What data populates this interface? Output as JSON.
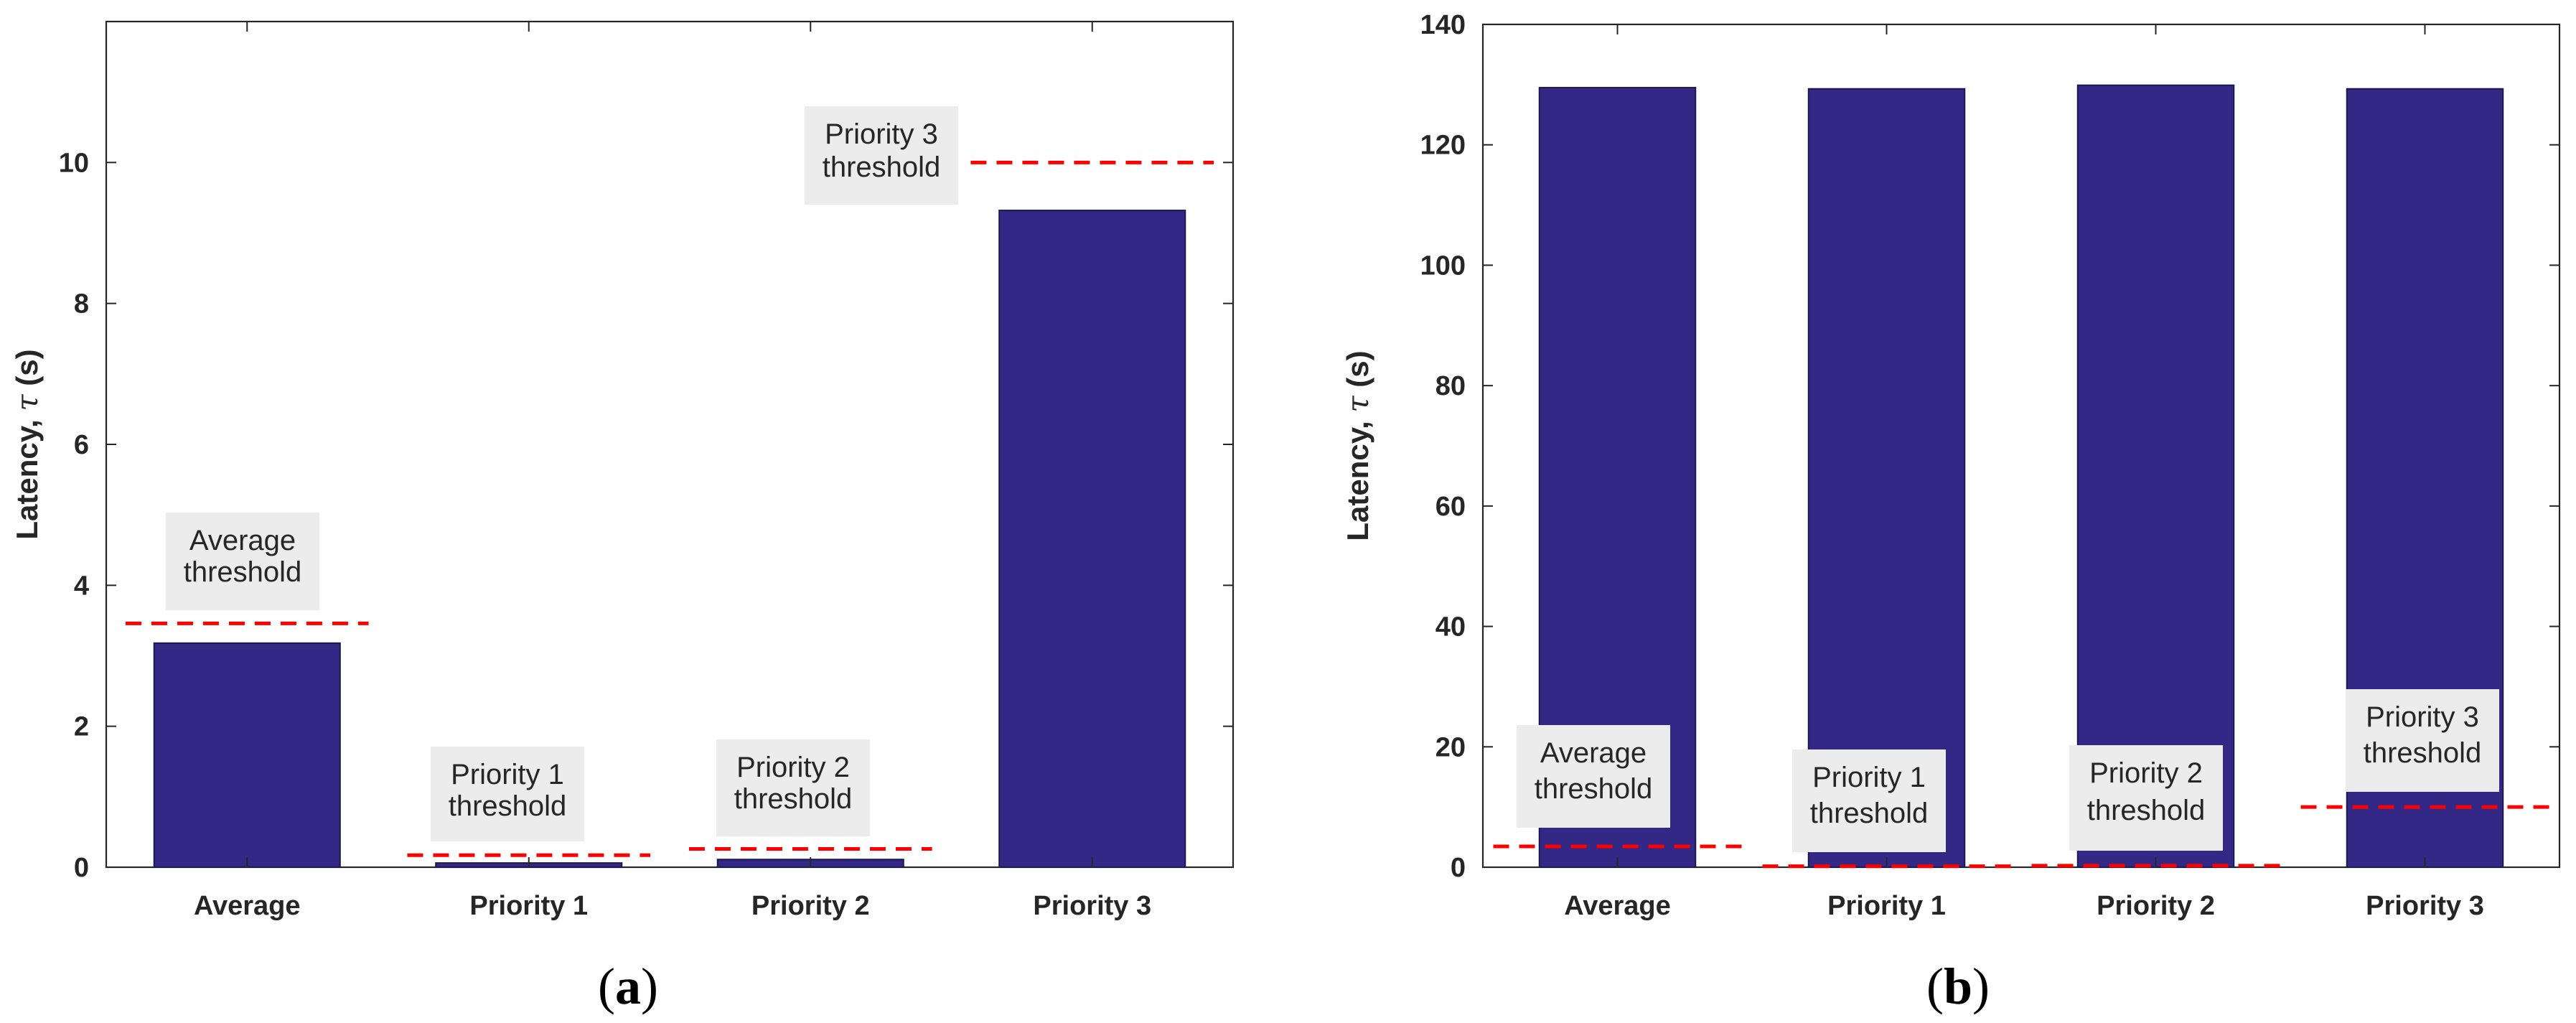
{
  "colors": {
    "bar": "#332885",
    "bar_edge": "#1d174f",
    "threshold": "#ff0000",
    "annotation_bg": "#ececec",
    "axis": "#262626"
  },
  "chart_data": [
    {
      "type": "bar",
      "panel_label": "a",
      "categories": [
        "Average",
        "Priority 1",
        "Priority 2",
        "Priority 3"
      ],
      "values": [
        3.18,
        0.06,
        0.11,
        9.32
      ],
      "thresholds": [
        3.46,
        0.17,
        0.26,
        10.0
      ],
      "ylabel_main": "Latency, ",
      "ylabel_symbol": "τ",
      "ylabel_unit": " (s)",
      "ylim": [
        0,
        12
      ],
      "yticks": [
        "0",
        "2",
        "4",
        "6",
        "8",
        "10"
      ],
      "annotations": [
        {
          "lines": [
            "Average",
            "threshold"
          ]
        },
        {
          "lines": [
            "Priority 1",
            "threshold"
          ]
        },
        {
          "lines": [
            "Priority 2",
            "threshold"
          ]
        },
        {
          "lines": [
            "Priority 3",
            "threshold"
          ]
        }
      ]
    },
    {
      "type": "bar",
      "panel_label": "b",
      "categories": [
        "Average",
        "Priority 1",
        "Priority 2",
        "Priority 3"
      ],
      "values": [
        129.5,
        129.3,
        129.9,
        129.3
      ],
      "thresholds": [
        3.46,
        0.17,
        0.26,
        10.0
      ],
      "ylabel_main": "Latency, ",
      "ylabel_symbol": "τ",
      "ylabel_unit": " (s)",
      "ylim": [
        0,
        140
      ],
      "yticks": [
        "0",
        "20",
        "40",
        "60",
        "80",
        "100",
        "120",
        "140"
      ],
      "annotations": [
        {
          "lines": [
            "Average",
            "threshold"
          ]
        },
        {
          "lines": [
            "Priority 1",
            "threshold"
          ]
        },
        {
          "lines": [
            "Priority 2",
            "threshold"
          ]
        },
        {
          "lines": [
            "Priority 3",
            "threshold"
          ]
        }
      ]
    }
  ]
}
